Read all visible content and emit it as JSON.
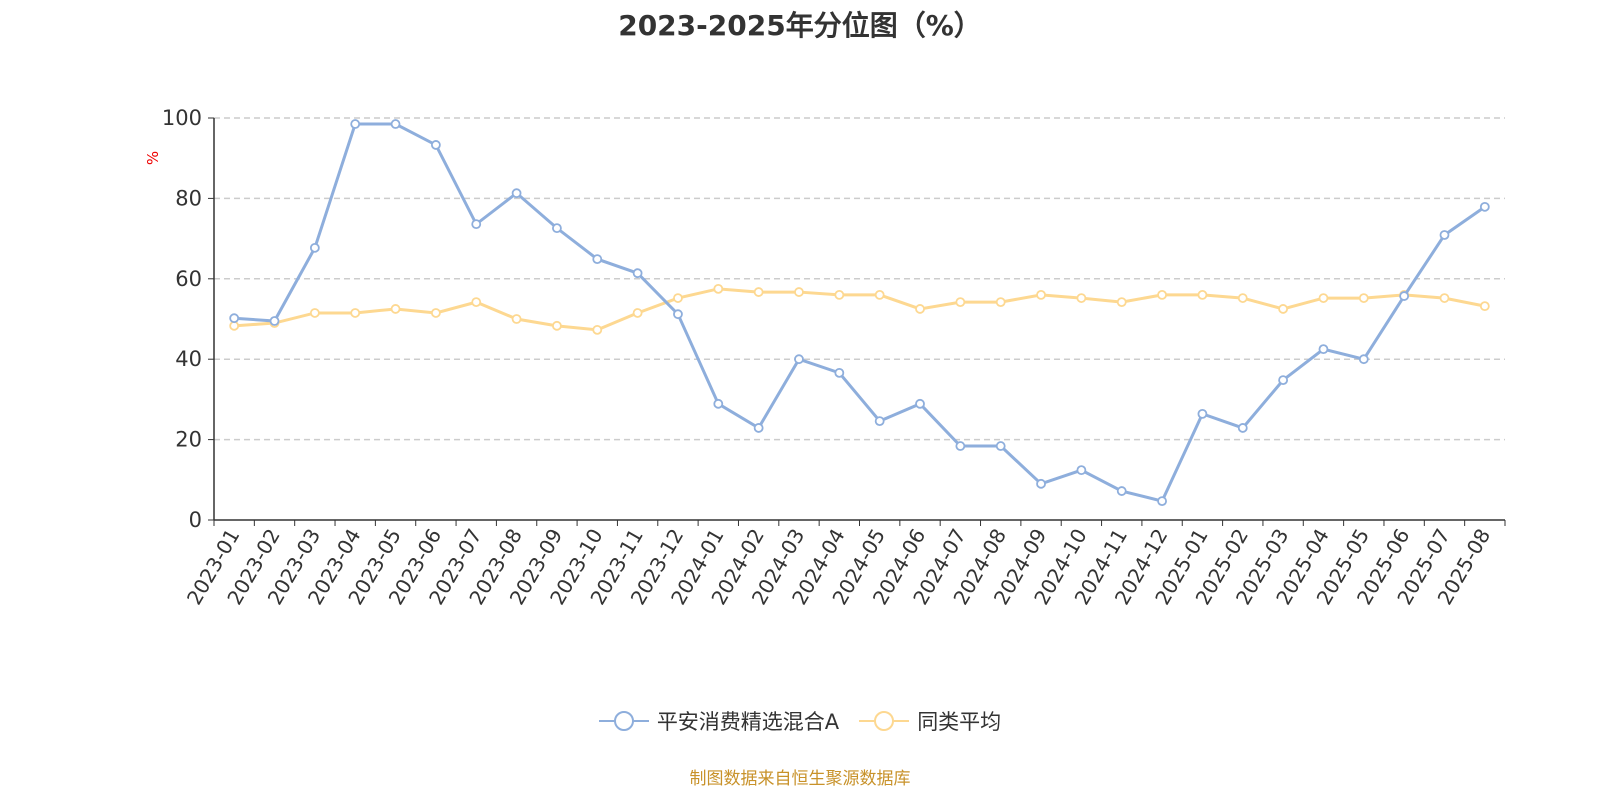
{
  "chart_data": {
    "type": "line",
    "title": "2023-2025年分位图（%）",
    "ylabel": "%",
    "ylim": [
      0,
      100
    ],
    "yticks": [
      0,
      20,
      40,
      60,
      80,
      100
    ],
    "grid": true,
    "legend_position": "bottom",
    "categories": [
      "2023-01",
      "2023-02",
      "2023-03",
      "2023-04",
      "2023-05",
      "2023-06",
      "2023-07",
      "2023-08",
      "2023-09",
      "2023-10",
      "2023-11",
      "2023-12",
      "2024-01",
      "2024-02",
      "2024-03",
      "2024-04",
      "2024-05",
      "2024-06",
      "2024-07",
      "2024-08",
      "2024-09",
      "2024-10",
      "2024-11",
      "2024-12",
      "2025-01",
      "2025-02",
      "2025-03",
      "2025-04",
      "2025-05",
      "2025-06",
      "2025-07",
      "2025-08"
    ],
    "series": [
      {
        "name": "平安消费精选混合A",
        "color": "#8eaedc",
        "values": [
          50.2,
          49.5,
          67.7,
          98.5,
          98.5,
          93.3,
          73.6,
          81.3,
          72.6,
          64.9,
          61.4,
          51.2,
          28.9,
          22.9,
          40.0,
          36.6,
          24.6,
          28.9,
          18.4,
          18.4,
          9.0,
          12.4,
          7.2,
          4.7,
          26.4,
          22.9,
          34.8,
          42.5,
          40.0,
          55.7,
          70.9,
          77.9
        ]
      },
      {
        "name": "同类平均",
        "color": "#fdd891",
        "values": [
          48.3,
          49.0,
          51.5,
          51.5,
          52.5,
          51.5,
          54.2,
          50.0,
          48.3,
          47.3,
          51.5,
          55.2,
          57.5,
          56.7,
          56.7,
          56.0,
          56.0,
          52.5,
          54.2,
          54.2,
          56.0,
          55.2,
          54.2,
          56.0,
          56.0,
          55.2,
          52.5,
          55.2,
          55.2,
          56.0,
          55.2,
          53.2
        ]
      }
    ]
  },
  "source": "制图数据来自恒生聚源数据库"
}
